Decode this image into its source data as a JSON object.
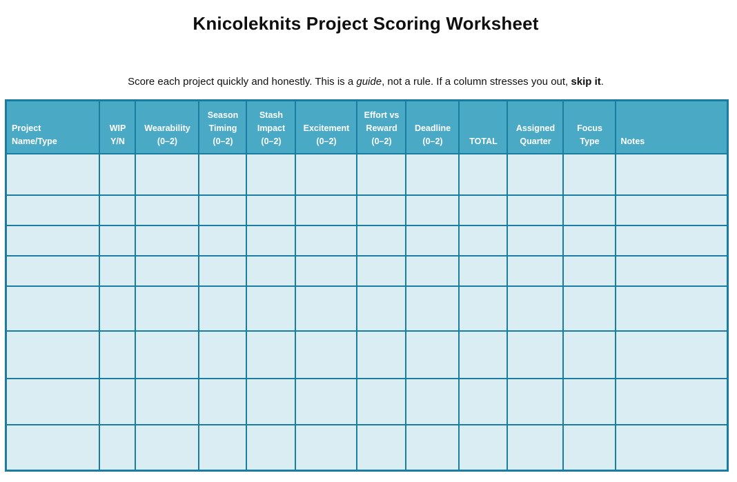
{
  "title": "Knicoleknits Project Scoring Worksheet",
  "subtitle": {
    "part1": "Score each project quickly and honestly. This is a ",
    "italic": "guide",
    "part2": ", not a rule. If a column stresses you out, ",
    "bold": "skip it",
    "part3": "."
  },
  "table": {
    "columns": [
      {
        "id": "project-name-type",
        "label": "Project Name/Type",
        "lines": [
          "Project",
          "Name/Type"
        ],
        "align": "left"
      },
      {
        "id": "wip-yn",
        "label": "WIP Y/N",
        "lines": [
          "WIP",
          "Y/N"
        ],
        "align": "center"
      },
      {
        "id": "wearability",
        "label": "Wearability (0–2)",
        "lines": [
          "Wearability",
          "(0–2)"
        ],
        "align": "center"
      },
      {
        "id": "season-timing",
        "label": "Season Timing (0–2)",
        "lines": [
          "Season",
          "Timing",
          "(0–2)"
        ],
        "align": "center"
      },
      {
        "id": "stash-impact",
        "label": "Stash Impact (0–2)",
        "lines": [
          "Stash",
          "Impact",
          "(0–2)"
        ],
        "align": "center"
      },
      {
        "id": "excitement",
        "label": "Excitement (0–2)",
        "lines": [
          "Excitement",
          "(0–2)"
        ],
        "align": "center"
      },
      {
        "id": "effort-vs-reward",
        "label": "Effort vs Reward (0–2)",
        "lines": [
          "Effort vs",
          "Reward",
          "(0–2)"
        ],
        "align": "center"
      },
      {
        "id": "deadline",
        "label": "Deadline (0–2)",
        "lines": [
          "Deadline",
          "(0–2)"
        ],
        "align": "center"
      },
      {
        "id": "total",
        "label": "TOTAL",
        "lines": [
          "TOTAL"
        ],
        "align": "center"
      },
      {
        "id": "assigned-quarter",
        "label": "Assigned Quarter",
        "lines": [
          "Assigned",
          "Quarter"
        ],
        "align": "center"
      },
      {
        "id": "focus-type",
        "label": "Focus Type",
        "lines": [
          "Focus",
          "Type"
        ],
        "align": "center"
      },
      {
        "id": "notes",
        "label": "Notes",
        "lines": [
          "Notes"
        ],
        "align": "left"
      }
    ],
    "empty_row_count": 8,
    "empty_cell_value": ""
  },
  "colors": {
    "page_bg": "#ffffff",
    "header_bg": "#4aa9c4",
    "header_text": "#ffffff",
    "border": "#1a7c9e",
    "cell_bg": "#daedf3",
    "body_text": "#0f0f0f"
  }
}
